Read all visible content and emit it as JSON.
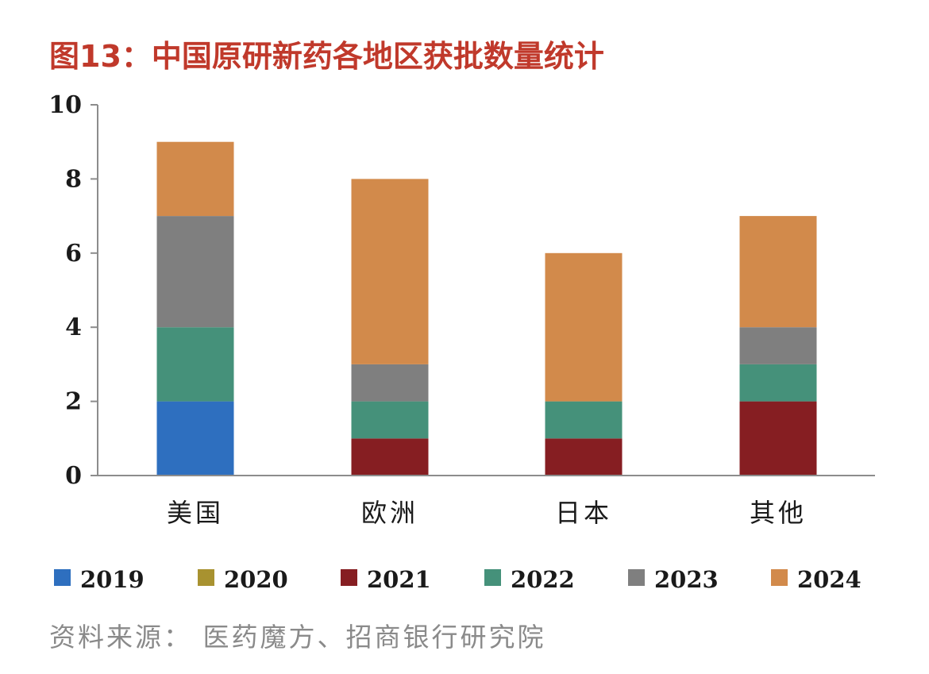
{
  "figure": {
    "title": "图13：中国原研新药各地区获批数量统计",
    "source": "资料来源： 医药魔方、招商银行研究院"
  },
  "chart_data": {
    "type": "bar",
    "stacked": true,
    "title": "",
    "xlabel": "",
    "ylabel": "",
    "categories": [
      "美国",
      "欧洲",
      "日本",
      "其他"
    ],
    "ylim": [
      0,
      10
    ],
    "yticks": [
      0,
      2,
      4,
      6,
      8,
      10
    ],
    "grid": false,
    "legend_position": "bottom",
    "series": [
      {
        "name": "2019",
        "values": [
          2,
          0,
          0,
          0
        ],
        "color": "#2e6fbf"
      },
      {
        "name": "2020",
        "values": [
          0,
          0,
          0,
          0
        ],
        "color": "#a89230"
      },
      {
        "name": "2021",
        "values": [
          0,
          1,
          1,
          2
        ],
        "color": "#861e22"
      },
      {
        "name": "2022",
        "values": [
          2,
          1,
          1,
          1
        ],
        "color": "#45917a"
      },
      {
        "name": "2023",
        "values": [
          3,
          1,
          0,
          1
        ],
        "color": "#7f7f7f"
      },
      {
        "name": "2024",
        "values": [
          2,
          5,
          4,
          3
        ],
        "color": "#d28a4b"
      }
    ]
  }
}
